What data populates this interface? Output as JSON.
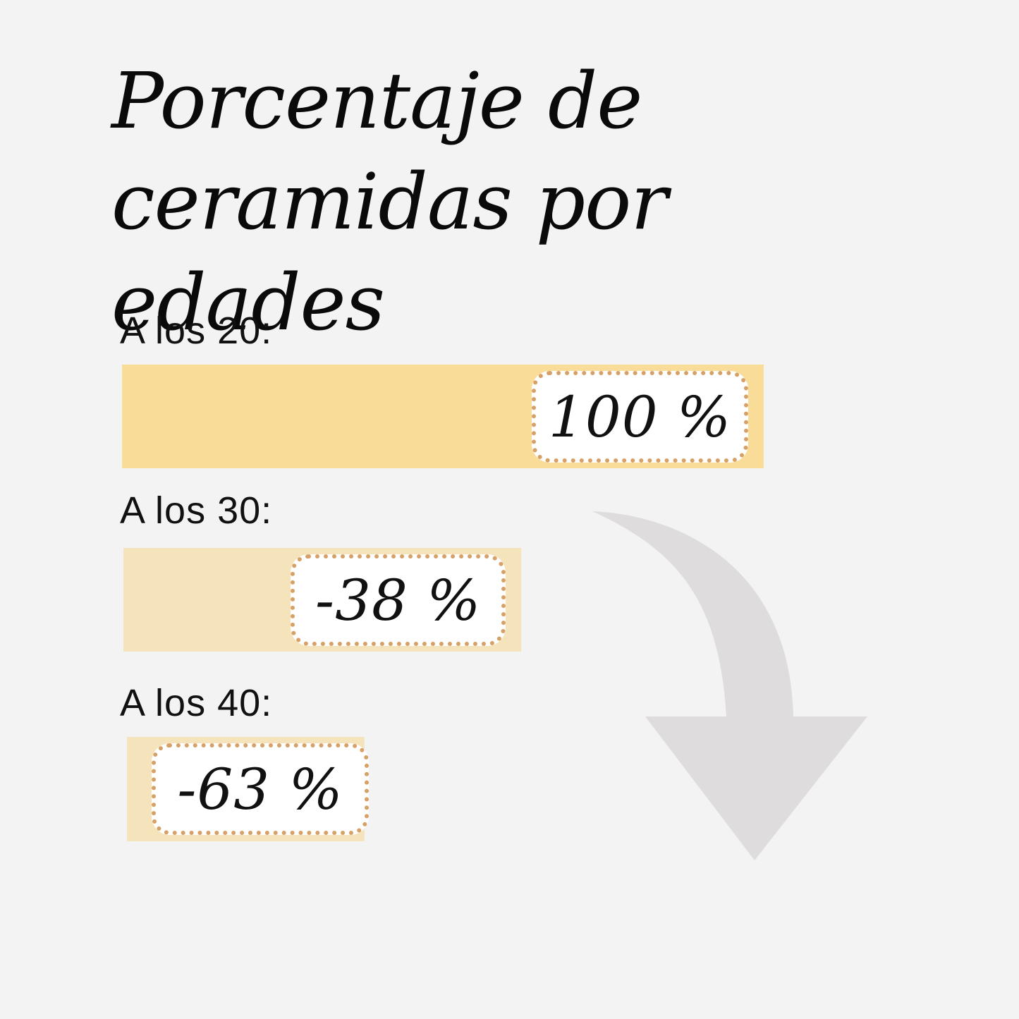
{
  "chart_data": {
    "type": "bar",
    "title_lines": [
      "Porcentaje de",
      "ceramidas por edades"
    ],
    "categories": [
      "A los 20:",
      "A los 30:",
      "A los 40:"
    ],
    "values": [
      100,
      62,
      37
    ],
    "value_labels": [
      "100 %",
      "-38 %",
      "-63 %"
    ],
    "xlim": [
      0,
      100
    ],
    "colors": {
      "bar_primary": "#f8dc97",
      "bar_secondary": "#f5e4bb",
      "badge_border": "#d6a066",
      "arrow": "#dedcdd"
    }
  }
}
